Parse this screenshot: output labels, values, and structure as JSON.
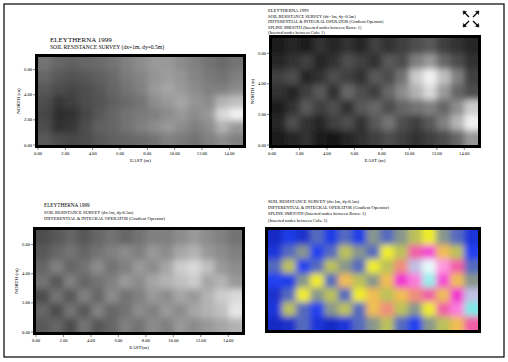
{
  "chart_data": [
    {
      "type": "heatmap",
      "title": "ELEYTHERNA 1999",
      "subtitle": [
        "SOIL RESISTANCE SURVEY (dx=1m, dy=0.5m)"
      ],
      "xlabel": "EAST (m)",
      "ylabel": "NORTH (m)",
      "color": "gray",
      "x": [
        0.5,
        1.5,
        2.5,
        3.5,
        4.5,
        5.5,
        6.5,
        7.5,
        8.5,
        9.5,
        10.5,
        11.5,
        12.5,
        13.5,
        14.5
      ],
      "y": [
        0.5,
        1.5,
        2.5,
        3.5,
        4.5,
        5.5,
        6.5
      ],
      "cells": [
        [
          35,
          30,
          28,
          30,
          35,
          38,
          40,
          42,
          45,
          50,
          48,
          45,
          50,
          55,
          50
        ],
        [
          30,
          20,
          22,
          30,
          38,
          40,
          45,
          50,
          55,
          60,
          55,
          50,
          55,
          70,
          60
        ],
        [
          28,
          18,
          20,
          28,
          35,
          40,
          45,
          48,
          50,
          55,
          60,
          55,
          60,
          85,
          95
        ],
        [
          30,
          22,
          25,
          30,
          32,
          38,
          42,
          45,
          55,
          60,
          65,
          58,
          55,
          70,
          75
        ],
        [
          35,
          30,
          28,
          30,
          35,
          40,
          45,
          50,
          60,
          65,
          60,
          55,
          50,
          50,
          55
        ],
        [
          40,
          35,
          32,
          35,
          38,
          42,
          48,
          52,
          58,
          62,
          58,
          52,
          48,
          45,
          50
        ],
        [
          45,
          40,
          38,
          40,
          42,
          45,
          50,
          55,
          60,
          60,
          55,
          50,
          45,
          42,
          45
        ]
      ],
      "color_range": [
        0,
        100
      ],
      "xlim": [
        0,
        15
      ],
      "ylim": [
        0,
        7
      ],
      "xticks": [
        {
          "value": 0,
          "label": "0.00"
        },
        {
          "value": 2,
          "label": "2.00"
        },
        {
          "value": 4,
          "label": "4.00"
        },
        {
          "value": 6,
          "label": "6.00"
        },
        {
          "value": 8,
          "label": "8.00"
        },
        {
          "value": 10,
          "label": "10.00"
        },
        {
          "value": 12,
          "label": "12.00"
        },
        {
          "value": 14,
          "label": "14.00"
        }
      ],
      "yticks": [
        {
          "value": 0,
          "label": "0.00"
        },
        {
          "value": 2,
          "label": "2.00"
        },
        {
          "value": 4,
          "label": "4.00"
        },
        {
          "value": 6,
          "label": "6.00"
        }
      ]
    },
    {
      "type": "heatmap",
      "title": "ELEYTHERNA 1999",
      "subtitle": [
        "SOIL RESISTANCE SURVEY (dx=1m, dy=0.5m)",
        "DIFFERENTIAL & INTEGRAL OPERATOR (Gradient Operator)",
        "SPLINE SMOOTH (Inserted nodes between Rows: 1)",
        "(Inserted nodes between Cols: 1)"
      ],
      "xlabel": "EAST (m)",
      "ylabel": "NORTH (m)",
      "color": "gray",
      "x": [
        0.5,
        1.5,
        2.5,
        3.5,
        4.5,
        5.5,
        6.5,
        7.5,
        8.5,
        9.5,
        10.5,
        11.5,
        12.5,
        13.5,
        14.5
      ],
      "y": [
        0.5,
        1.5,
        2.5,
        3.5,
        4.5,
        5.5,
        6.5
      ],
      "cells": [
        [
          10,
          15,
          20,
          12,
          8,
          15,
          20,
          25,
          30,
          25,
          20,
          25,
          30,
          40,
          60
        ],
        [
          15,
          30,
          20,
          15,
          25,
          30,
          20,
          35,
          45,
          30,
          25,
          35,
          50,
          70,
          95
        ],
        [
          10,
          20,
          35,
          25,
          30,
          20,
          35,
          40,
          30,
          40,
          45,
          50,
          40,
          55,
          80
        ],
        [
          20,
          15,
          25,
          35,
          20,
          40,
          30,
          25,
          40,
          55,
          70,
          85,
          60,
          40,
          30
        ],
        [
          25,
          30,
          15,
          20,
          30,
          25,
          20,
          35,
          30,
          45,
          80,
          95,
          75,
          50,
          25
        ],
        [
          15,
          20,
          25,
          15,
          20,
          30,
          25,
          20,
          35,
          30,
          50,
          60,
          40,
          30,
          20
        ],
        [
          10,
          15,
          10,
          20,
          15,
          20,
          15,
          25,
          20,
          25,
          30,
          35,
          25,
          20,
          15
        ]
      ],
      "color_range": [
        0,
        100
      ],
      "xlim": [
        0,
        15
      ],
      "ylim": [
        0,
        7
      ],
      "xticks": [
        {
          "value": 0,
          "label": "0.00"
        },
        {
          "value": 2,
          "label": "2.00"
        },
        {
          "value": 4,
          "label": "4.00"
        },
        {
          "value": 6,
          "label": "6.00"
        },
        {
          "value": 8,
          "label": "8.00"
        },
        {
          "value": 10,
          "label": "10.00"
        },
        {
          "value": 12,
          "label": "12.00"
        },
        {
          "value": 14,
          "label": "14.00"
        }
      ],
      "yticks": [
        {
          "value": 0,
          "label": "0.00"
        },
        {
          "value": 2,
          "label": "2.00"
        },
        {
          "value": 4,
          "label": "4.00"
        },
        {
          "value": 6,
          "label": "6.00"
        }
      ]
    },
    {
      "type": "heatmap",
      "title": "ELEYTHERNA 1999",
      "subtitle": [
        "SOIL RESISTANCE SURVEY (dx:1m, dy:0.5m)",
        "DIFFERENTIAL & INTEGRAL OPERATOR (Gradient Operator)"
      ],
      "xlabel": "EAST(m)",
      "ylabel": "NORTH (m)",
      "color": "gray",
      "x": [
        0.5,
        1.5,
        2.5,
        3.5,
        4.5,
        5.5,
        6.5,
        7.5,
        8.5,
        9.5,
        10.5,
        11.5,
        12.5,
        13.5,
        14.5
      ],
      "y": [
        0.5,
        1.5,
        2.5,
        3.5,
        4.5,
        5.5,
        6.5
      ],
      "cells": [
        [
          35,
          40,
          30,
          45,
          35,
          40,
          50,
          45,
          55,
          50,
          60,
          55,
          60,
          65,
          70
        ],
        [
          40,
          30,
          45,
          35,
          50,
          40,
          45,
          55,
          50,
          60,
          55,
          65,
          70,
          75,
          90
        ],
        [
          30,
          45,
          35,
          50,
          40,
          55,
          45,
          50,
          60,
          55,
          65,
          60,
          70,
          80,
          85
        ],
        [
          45,
          35,
          50,
          40,
          45,
          50,
          60,
          55,
          65,
          70,
          75,
          80,
          65,
          70,
          60
        ],
        [
          40,
          50,
          40,
          45,
          55,
          45,
          50,
          60,
          55,
          65,
          80,
          85,
          75,
          60,
          55
        ],
        [
          35,
          40,
          45,
          40,
          45,
          50,
          55,
          50,
          60,
          55,
          65,
          70,
          60,
          55,
          50
        ],
        [
          30,
          35,
          40,
          35,
          40,
          45,
          40,
          45,
          50,
          50,
          55,
          60,
          55,
          50,
          45
        ]
      ],
      "color_range": [
        0,
        100
      ],
      "xlim": [
        0,
        15
      ],
      "ylim": [
        0,
        7
      ],
      "xticks": [
        {
          "value": 0,
          "label": "0.00"
        },
        {
          "value": 2,
          "label": "2.00"
        },
        {
          "value": 4,
          "label": "4.00"
        },
        {
          "value": 6,
          "label": "6.00"
        },
        {
          "value": 8,
          "label": "8.00"
        },
        {
          "value": 10,
          "label": "10.00"
        },
        {
          "value": 12,
          "label": "12.00"
        },
        {
          "value": 14,
          "label": "14.00"
        }
      ],
      "yticks": [
        {
          "value": 0,
          "label": "0.00"
        },
        {
          "value": 2,
          "label": "2.00"
        },
        {
          "value": 4,
          "label": "4.00"
        },
        {
          "value": 6,
          "label": "6.00"
        }
      ]
    },
    {
      "type": "heatmap",
      "title": "SOIL RESISTANCE SURVEY (dx:1m, dy:0.5m)",
      "subtitle": [
        "DIFFERENTIAL & INTEGRAL OPERATOR (Gradient Operator)",
        "SPLINE SMOOTH (Inserted nodes between Rows: 1)",
        "(Inserted nodes between Cols: 1)"
      ],
      "color": "spectral",
      "tick_labels": false,
      "x": [
        0.5,
        1.5,
        2.5,
        3.5,
        4.5,
        5.5,
        6.5,
        7.5,
        8.5,
        9.5,
        10.5,
        11.5,
        12.5,
        13.5,
        14.5
      ],
      "y": [
        0.5,
        1.5,
        2.5,
        3.5,
        4.5,
        5.5,
        6.5
      ],
      "cells": [
        [
          10,
          12,
          25,
          15,
          10,
          15,
          25,
          30,
          35,
          25,
          20,
          30,
          35,
          45,
          55
        ],
        [
          15,
          35,
          25,
          20,
          30,
          35,
          25,
          45,
          50,
          35,
          30,
          40,
          55,
          75,
          90
        ],
        [
          12,
          25,
          40,
          30,
          35,
          25,
          40,
          45,
          35,
          45,
          50,
          55,
          45,
          60,
          85
        ],
        [
          20,
          18,
          30,
          40,
          25,
          45,
          35,
          30,
          45,
          60,
          75,
          92,
          65,
          45,
          30
        ],
        [
          25,
          35,
          20,
          25,
          35,
          30,
          25,
          40,
          35,
          50,
          85,
          98,
          80,
          55,
          25
        ],
        [
          15,
          25,
          30,
          20,
          25,
          35,
          30,
          25,
          40,
          35,
          55,
          65,
          45,
          35,
          20
        ],
        [
          10,
          18,
          12,
          25,
          18,
          25,
          18,
          30,
          25,
          30,
          35,
          40,
          30,
          25,
          15
        ]
      ],
      "color_range": [
        0,
        100
      ],
      "xlim": [
        0,
        15
      ],
      "ylim": [
        0,
        7
      ]
    }
  ]
}
